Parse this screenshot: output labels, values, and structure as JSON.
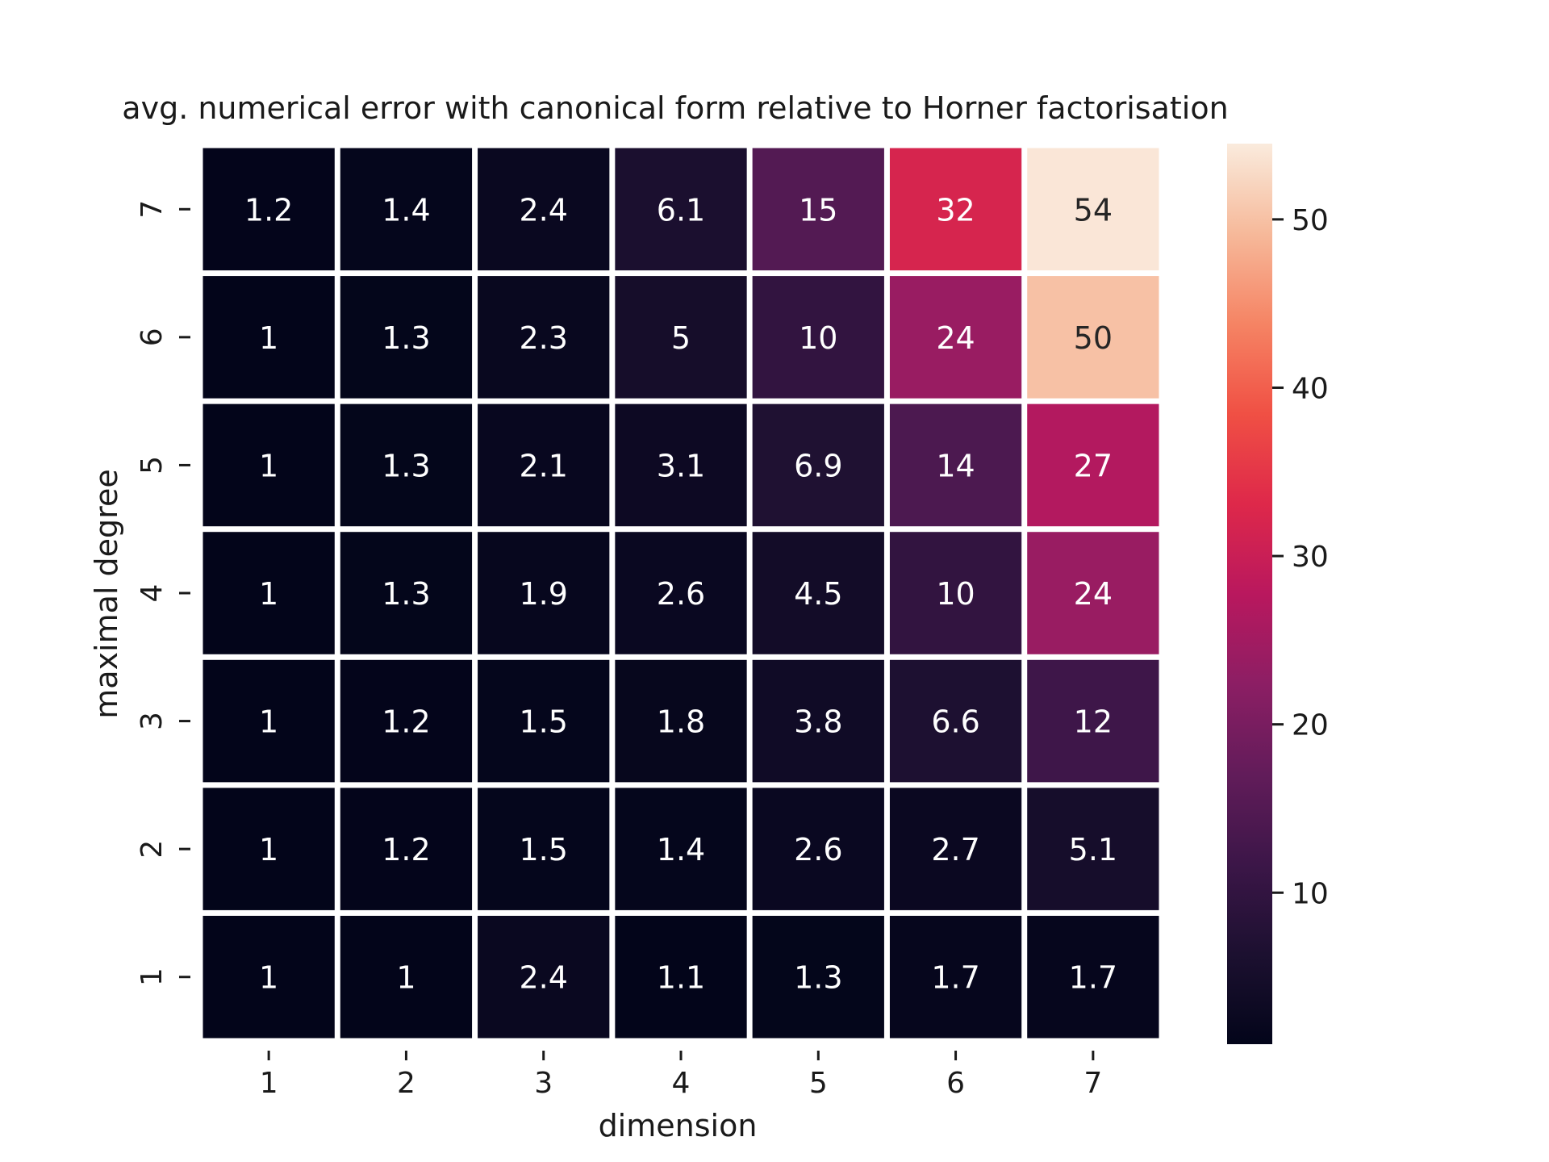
{
  "chart_data": {
    "type": "heatmap",
    "title": "avg. numerical error with canonical form relative to Horner factorisation",
    "xlabel": "dimension",
    "ylabel": "maximal degree",
    "x_categories": [
      "1",
      "2",
      "3",
      "4",
      "5",
      "6",
      "7"
    ],
    "y_categories": [
      "7",
      "6",
      "5",
      "4",
      "3",
      "2",
      "1"
    ],
    "values": [
      [
        1.2,
        1.4,
        2.4,
        6.1,
        15,
        32,
        54
      ],
      [
        1.0,
        1.3,
        2.3,
        5.0,
        10,
        24,
        50
      ],
      [
        1.0,
        1.3,
        2.1,
        3.1,
        6.9,
        14,
        27
      ],
      [
        1.0,
        1.3,
        1.9,
        2.6,
        4.5,
        10,
        24
      ],
      [
        1.0,
        1.2,
        1.5,
        1.8,
        3.8,
        6.6,
        12
      ],
      [
        1.0,
        1.2,
        1.5,
        1.4,
        2.6,
        2.7,
        5.1
      ],
      [
        1.0,
        1.0,
        2.4,
        1.1,
        1.3,
        1.7,
        1.7
      ]
    ],
    "annotations": [
      [
        "1.2",
        "1.4",
        "2.4",
        "6.1",
        "15",
        "32",
        "54"
      ],
      [
        "1",
        "1.3",
        "2.3",
        "5",
        "10",
        "24",
        "50"
      ],
      [
        "1",
        "1.3",
        "2.1",
        "3.1",
        "6.9",
        "14",
        "27"
      ],
      [
        "1",
        "1.3",
        "1.9",
        "2.6",
        "4.5",
        "10",
        "24"
      ],
      [
        "1",
        "1.2",
        "1.5",
        "1.8",
        "3.8",
        "6.6",
        "12"
      ],
      [
        "1",
        "1.2",
        "1.5",
        "1.4",
        "2.6",
        "2.7",
        "5.1"
      ],
      [
        "1",
        "1",
        "2.4",
        "1.1",
        "1.3",
        "1.7",
        "1.7"
      ]
    ],
    "colorbar": {
      "colormap": "rocket",
      "vmin": 1.0,
      "vmax": 54.5,
      "ticks": [
        10,
        20,
        30,
        40,
        50
      ],
      "tick_labels": [
        "10",
        "20",
        "30",
        "40",
        "50"
      ]
    },
    "grid": false
  }
}
